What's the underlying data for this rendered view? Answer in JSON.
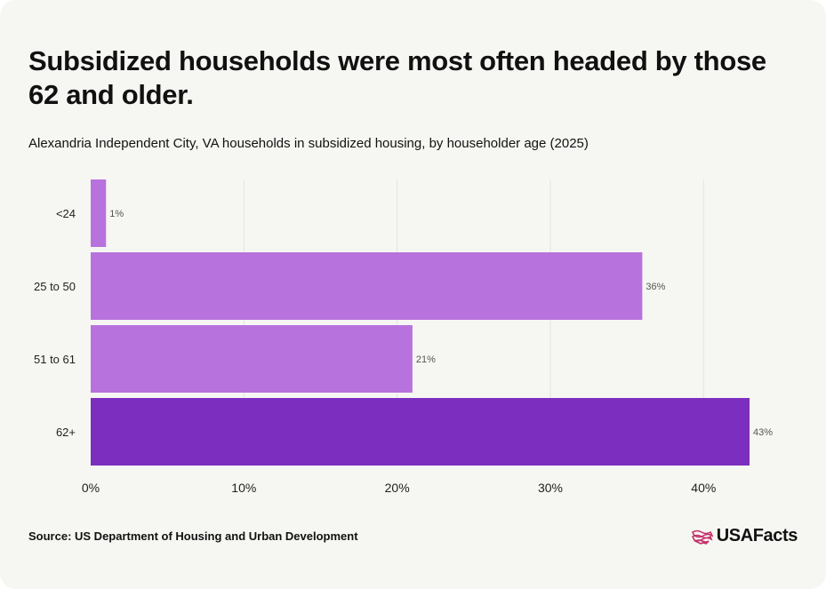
{
  "header": {
    "title": "Subsidized households were most often headed by those 62 and older.",
    "subtitle": "Alexandria Independent City, VA households in subsidized housing, by householder age (2025)"
  },
  "footer": {
    "source": "Source: US Department of Housing and Urban Development",
    "brand": "USAFacts"
  },
  "colors": {
    "bar_default": "#b872dd",
    "bar_highlight": "#7c2ebf",
    "grid": "#e4e4e0",
    "axis_text": "#222222",
    "label_text": "#555555",
    "brand_mark": "#c4306a"
  },
  "chart_data": {
    "type": "bar",
    "orientation": "horizontal",
    "categories": [
      "<24",
      "25 to 50",
      "51 to 61",
      "62+"
    ],
    "values": [
      1,
      36,
      21,
      43
    ],
    "value_labels": [
      "1%",
      "36%",
      "21%",
      "43%"
    ],
    "highlight_index": 3,
    "xlim": [
      0,
      43
    ],
    "x_ticks": [
      0,
      10,
      20,
      30,
      40
    ],
    "x_tick_labels": [
      "0%",
      "10%",
      "20%",
      "30%",
      "40%"
    ],
    "grid": true,
    "legend": "none"
  }
}
